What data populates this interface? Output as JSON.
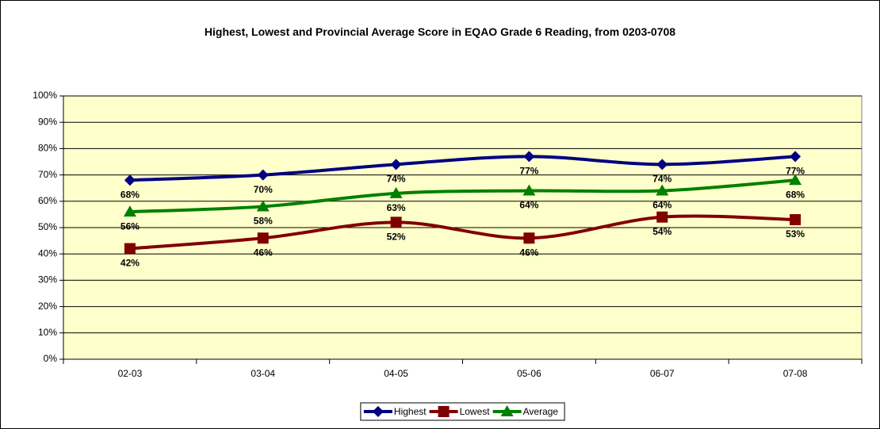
{
  "chart_data": {
    "type": "line",
    "title": "Highest, Lowest and Provincial Average Score in EQAO Grade 6 Reading, from 0203-0708",
    "categories": [
      "02-03",
      "03-04",
      "04-05",
      "05-06",
      "06-07",
      "07-08"
    ],
    "series": [
      {
        "name": "Highest",
        "color": "#000080",
        "marker": "diamond",
        "values": [
          68,
          70,
          74,
          77,
          74,
          77
        ],
        "value_labels": [
          "68%",
          "70%",
          "74%",
          "77%",
          "74%",
          "77%"
        ]
      },
      {
        "name": "Lowest",
        "color": "#800000",
        "marker": "square",
        "values": [
          42,
          46,
          52,
          46,
          54,
          53
        ],
        "value_labels": [
          "42%",
          "46%",
          "52%",
          "46%",
          "54%",
          "53%"
        ]
      },
      {
        "name": "Average",
        "color": "#008000",
        "marker": "triangle",
        "values": [
          56,
          58,
          63,
          64,
          64,
          68
        ],
        "value_labels": [
          "56%",
          "58%",
          "63%",
          "64%",
          "64%",
          "68%"
        ]
      }
    ],
    "ylim": [
      0,
      100
    ],
    "yticks": [
      {
        "value": 0,
        "label": "0%"
      },
      {
        "value": 10,
        "label": "10%"
      },
      {
        "value": 20,
        "label": "20%"
      },
      {
        "value": 30,
        "label": "30%"
      },
      {
        "value": 40,
        "label": "40%"
      },
      {
        "value": 50,
        "label": "50%"
      },
      {
        "value": 60,
        "label": "60%"
      },
      {
        "value": 70,
        "label": "70%"
      },
      {
        "value": 80,
        "label": "80%"
      },
      {
        "value": 90,
        "label": "90%"
      },
      {
        "value": 100,
        "label": "100%"
      }
    ],
    "grid": true,
    "smooth": true,
    "legend": "bottom",
    "plot_background": "#ffffcc"
  }
}
